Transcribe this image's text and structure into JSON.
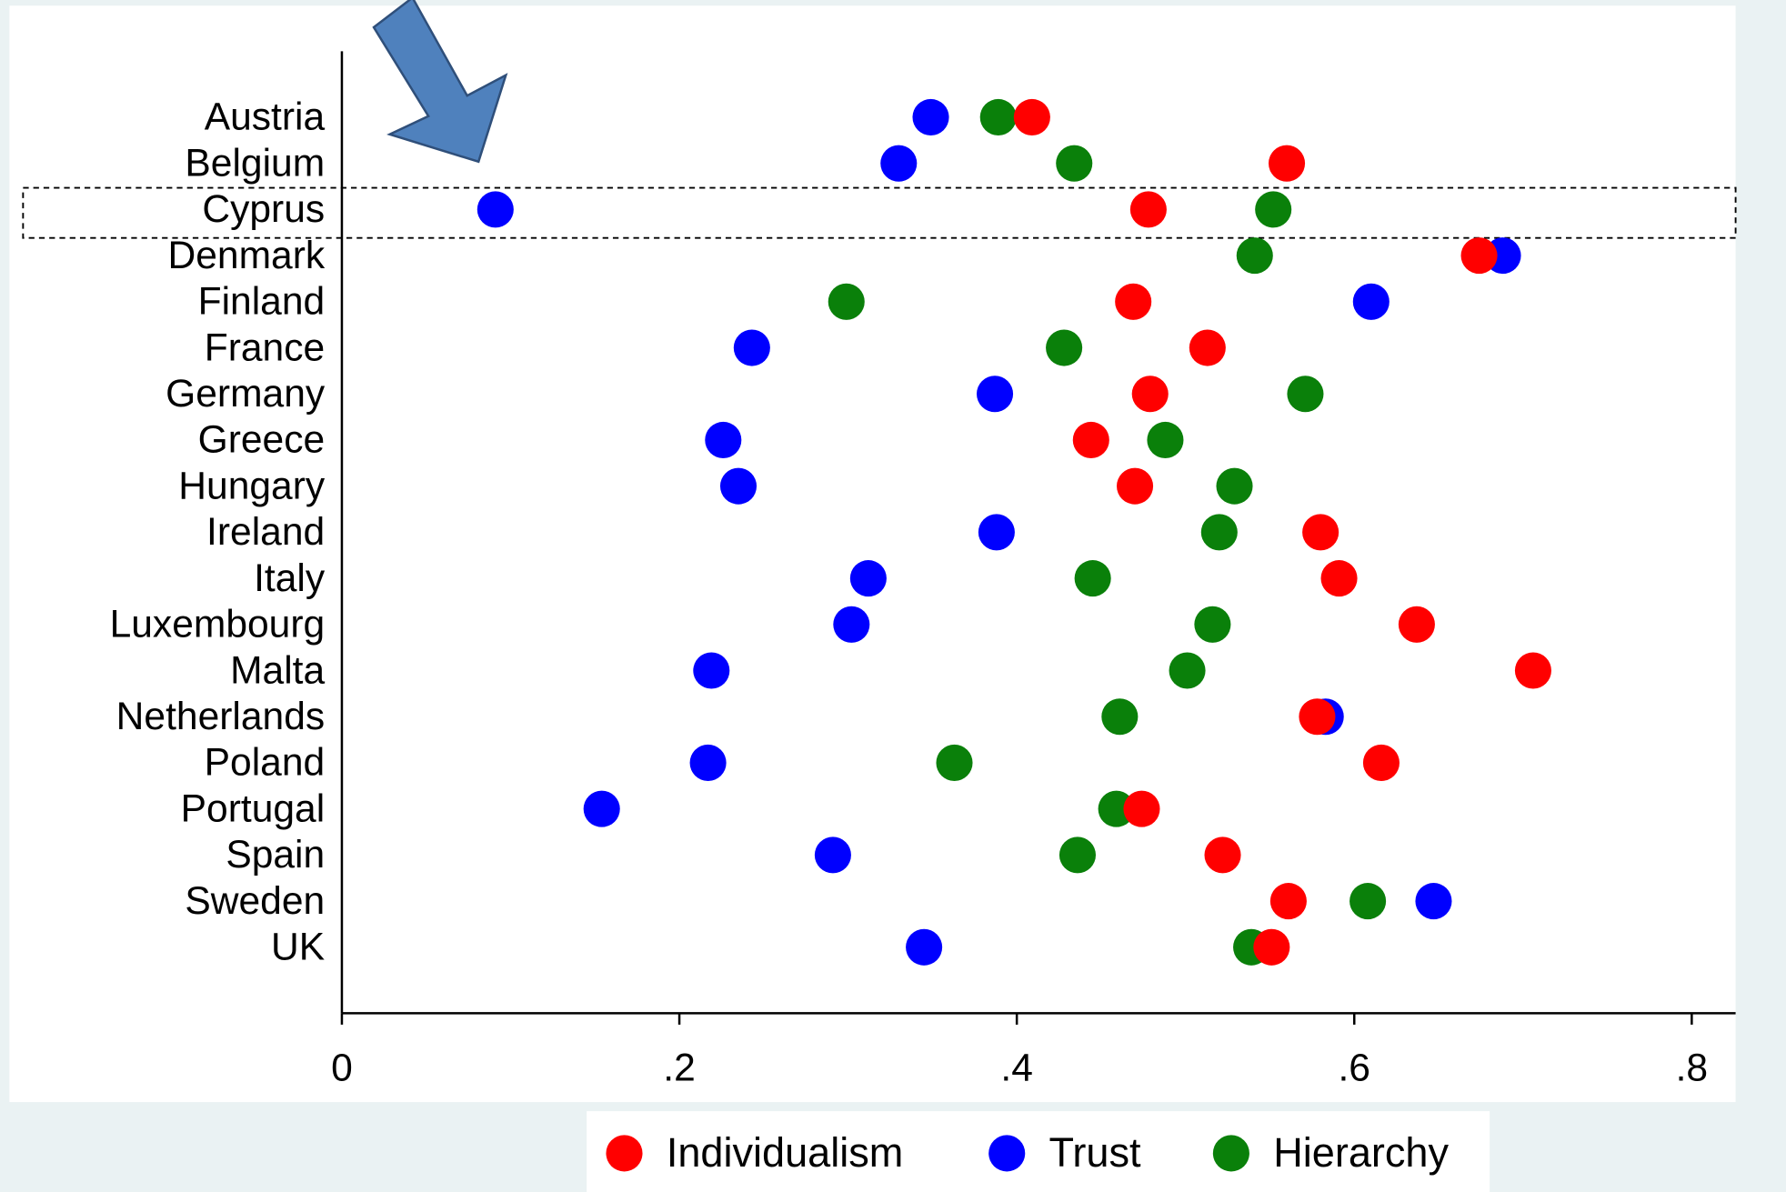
{
  "chart_data": {
    "type": "dot",
    "categories": [
      "Austria",
      "Belgium",
      "Cyprus",
      "Denmark",
      "Finland",
      "France",
      "Germany",
      "Greece",
      "Hungary",
      "Ireland",
      "Italy",
      "Luxembourg",
      "Malta",
      "Netherlands",
      "Poland",
      "Portugal",
      "Spain",
      "Sweden",
      "UK"
    ],
    "series": [
      {
        "name": "Individualism",
        "color": "#ff0000",
        "values": [
          0.409,
          0.56,
          0.478,
          0.674,
          0.469,
          0.513,
          0.479,
          0.444,
          0.47,
          0.58,
          0.591,
          0.637,
          0.706,
          0.578,
          0.616,
          0.474,
          0.522,
          0.561,
          0.551
        ]
      },
      {
        "name": "Trust",
        "color": "#0000ff",
        "values": [
          0.349,
          0.33,
          0.091,
          0.688,
          0.61,
          0.243,
          0.387,
          0.226,
          0.235,
          0.388,
          0.312,
          0.302,
          0.219,
          0.583,
          0.217,
          0.154,
          0.291,
          0.647,
          0.345
        ]
      },
      {
        "name": "Hierarchy",
        "color": "#0a800a",
        "values": [
          0.389,
          0.434,
          0.552,
          0.541,
          0.299,
          0.428,
          0.571,
          0.488,
          0.529,
          0.52,
          0.445,
          0.516,
          0.501,
          0.461,
          0.363,
          0.459,
          0.436,
          0.608,
          0.539
        ]
      }
    ],
    "xlim": [
      0,
      0.826
    ],
    "xticks": [
      0,
      {
        "value": 0.2,
        "label": ".2"
      },
      {
        "value": 0.4,
        "label": ".4"
      },
      {
        "value": 0.6,
        "label": ".6"
      },
      {
        "value": 0.8,
        "label": ".8"
      }
    ],
    "legend": "bottom"
  }
}
